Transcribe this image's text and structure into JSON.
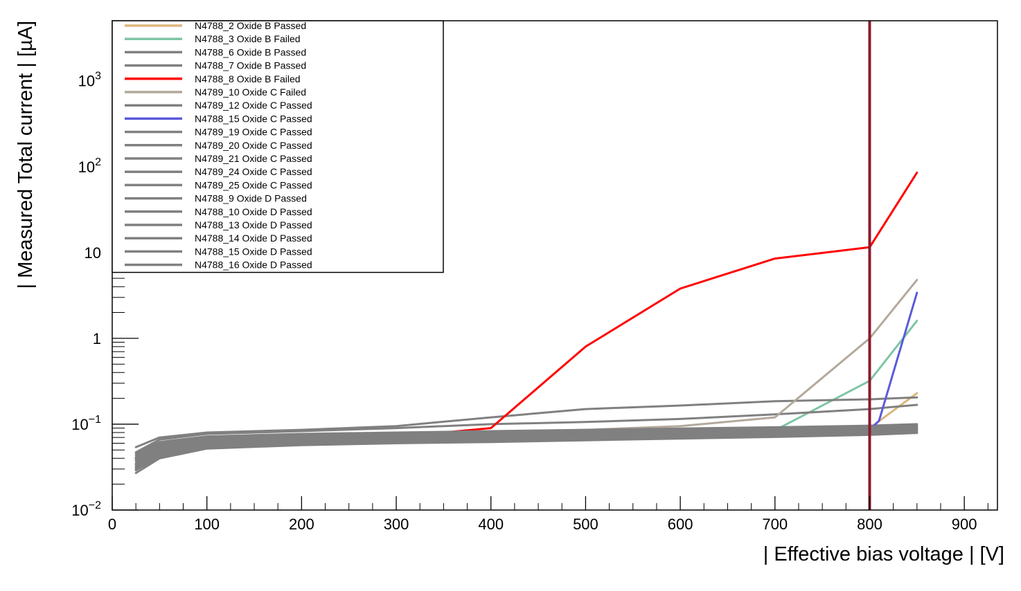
{
  "chart_data": {
    "type": "line",
    "xlabel": "| Effective bias voltage | [V]",
    "ylabel": "| Measured Total current | [µA]",
    "xlim": [
      0,
      935
    ],
    "ylim": [
      0.01,
      5000
    ],
    "y_scale": "log",
    "grid": false,
    "legend_position": "top-left",
    "x_ticks": [
      {
        "value": 0,
        "label": "0"
      },
      {
        "value": 100,
        "label": "100"
      },
      {
        "value": 200,
        "label": "200"
      },
      {
        "value": 300,
        "label": "300"
      },
      {
        "value": 400,
        "label": "400"
      },
      {
        "value": 500,
        "label": "500"
      },
      {
        "value": 600,
        "label": "600"
      },
      {
        "value": 700,
        "label": "700"
      },
      {
        "value": 800,
        "label": "800"
      },
      {
        "value": 900,
        "label": "900"
      }
    ],
    "y_ticks": [
      {
        "value": 0.01,
        "base": "10",
        "exp": "−2"
      },
      {
        "value": 0.1,
        "base": "10",
        "exp": "−1"
      },
      {
        "value": 1,
        "base": "1",
        "exp": ""
      },
      {
        "value": 10,
        "base": "10",
        "exp": ""
      },
      {
        "value": 100,
        "base": "10",
        "exp": "2"
      },
      {
        "value": 1000,
        "base": "10",
        "exp": "3"
      }
    ],
    "reference_line": {
      "x": 800,
      "color": "#8b1a2e"
    },
    "series": [
      {
        "name": "N4788_2 Oxide B Passed",
        "color": "#dcb67a",
        "x": [
          25,
          50,
          100,
          200,
          300,
          400,
          500,
          600,
          700,
          800,
          850
        ],
        "y": [
          0.033,
          0.048,
          0.058,
          0.062,
          0.066,
          0.068,
          0.07,
          0.074,
          0.078,
          0.09,
          0.23
        ]
      },
      {
        "name": "N4788_3 Oxide B Failed",
        "color": "#7fc4a4",
        "x": [
          25,
          50,
          100,
          200,
          300,
          400,
          500,
          600,
          700,
          800,
          850
        ],
        "y": [
          0.032,
          0.046,
          0.056,
          0.06,
          0.064,
          0.066,
          0.07,
          0.075,
          0.085,
          0.32,
          1.6
        ]
      },
      {
        "name": "N4788_6 Oxide B Passed",
        "color": "#808080",
        "x": [
          25,
          50,
          100,
          200,
          300,
          400,
          500,
          600,
          700,
          800,
          850
        ],
        "y": [
          0.054,
          0.07,
          0.08,
          0.086,
          0.095,
          0.12,
          0.15,
          0.165,
          0.185,
          0.195,
          0.205
        ]
      },
      {
        "name": "N4788_7 Oxide B Passed",
        "color": "#808080",
        "x": [
          25,
          50,
          100,
          200,
          300,
          400,
          500,
          600,
          700,
          800,
          850
        ],
        "y": [
          0.047,
          0.066,
          0.077,
          0.083,
          0.09,
          0.1,
          0.106,
          0.115,
          0.13,
          0.15,
          0.168
        ]
      },
      {
        "name": "N4788_8 Oxide B Failed",
        "color": "#ff0000",
        "x": [
          25,
          50,
          100,
          200,
          300,
          350,
          400,
          500,
          600,
          700,
          800,
          850
        ],
        "y": [
          0.04,
          0.055,
          0.063,
          0.066,
          0.071,
          0.08,
          0.09,
          0.8,
          3.8,
          8.5,
          11.5,
          85
        ]
      },
      {
        "name": "N4789_10 Oxide C Failed",
        "color": "#b3a99b",
        "x": [
          25,
          50,
          100,
          200,
          300,
          400,
          500,
          600,
          700,
          800,
          850
        ],
        "y": [
          0.038,
          0.054,
          0.064,
          0.069,
          0.075,
          0.08,
          0.086,
          0.095,
          0.12,
          1.0,
          4.8
        ]
      },
      {
        "name": "N4789_12 Oxide C Passed",
        "color": "#808080",
        "x": [
          25,
          50,
          100,
          200,
          300,
          400,
          500,
          600,
          700,
          800,
          850
        ],
        "y": [
          0.045,
          0.062,
          0.072,
          0.077,
          0.08,
          0.083,
          0.086,
          0.089,
          0.092,
          0.096,
          0.1
        ]
      },
      {
        "name": "N4788_15 Oxide C Passed",
        "color": "#5a5adc",
        "x": [
          25,
          50,
          80,
          100,
          200,
          300,
          400,
          500,
          600,
          700,
          800,
          810,
          850
        ],
        "y": [
          0.034,
          0.05,
          0.06,
          0.064,
          0.066,
          0.068,
          0.07,
          0.072,
          0.075,
          0.078,
          0.085,
          0.11,
          3.4
        ]
      },
      {
        "name": "N4789_19 Oxide C Passed",
        "color": "#808080",
        "x": [
          25,
          50,
          100,
          200,
          300,
          400,
          500,
          600,
          700,
          800,
          850
        ],
        "y": [
          0.043,
          0.06,
          0.07,
          0.075,
          0.078,
          0.08,
          0.083,
          0.086,
          0.089,
          0.093,
          0.097
        ]
      },
      {
        "name": "N4789_20 Oxide C Passed",
        "color": "#808080",
        "x": [
          25,
          50,
          100,
          200,
          300,
          400,
          500,
          600,
          700,
          800,
          850
        ],
        "y": [
          0.041,
          0.058,
          0.068,
          0.073,
          0.076,
          0.078,
          0.081,
          0.084,
          0.087,
          0.091,
          0.095
        ]
      },
      {
        "name": "N4789_21 Oxide C Passed",
        "color": "#808080",
        "x": [
          25,
          50,
          100,
          200,
          300,
          400,
          500,
          600,
          700,
          800,
          850
        ],
        "y": [
          0.039,
          0.056,
          0.066,
          0.071,
          0.074,
          0.076,
          0.079,
          0.082,
          0.085,
          0.089,
          0.093
        ]
      },
      {
        "name": "N4789_24 Oxide C Passed",
        "color": "#808080",
        "x": [
          25,
          50,
          100,
          200,
          300,
          400,
          500,
          600,
          700,
          800,
          850
        ],
        "y": [
          0.037,
          0.054,
          0.064,
          0.069,
          0.072,
          0.074,
          0.077,
          0.08,
          0.083,
          0.087,
          0.091
        ]
      },
      {
        "name": "N4789_25 Oxide C Passed",
        "color": "#808080",
        "x": [
          25,
          50,
          100,
          200,
          300,
          400,
          500,
          600,
          700,
          800,
          850
        ],
        "y": [
          0.035,
          0.052,
          0.062,
          0.067,
          0.07,
          0.072,
          0.075,
          0.078,
          0.081,
          0.085,
          0.089
        ]
      },
      {
        "name": "N4788_9 Oxide D Passed",
        "color": "#808080",
        "x": [
          25,
          50,
          100,
          200,
          300,
          400,
          500,
          600,
          700,
          800,
          850
        ],
        "y": [
          0.034,
          0.05,
          0.06,
          0.065,
          0.068,
          0.07,
          0.073,
          0.076,
          0.079,
          0.083,
          0.087
        ]
      },
      {
        "name": "N4788_10 Oxide D Passed",
        "color": "#808080",
        "x": [
          25,
          50,
          100,
          200,
          300,
          400,
          500,
          600,
          700,
          800,
          850
        ],
        "y": [
          0.032,
          0.048,
          0.058,
          0.063,
          0.066,
          0.068,
          0.071,
          0.074,
          0.077,
          0.081,
          0.085
        ]
      },
      {
        "name": "N4788_13 Oxide D Passed",
        "color": "#808080",
        "x": [
          25,
          50,
          100,
          200,
          300,
          400,
          500,
          600,
          700,
          800,
          850
        ],
        "y": [
          0.031,
          0.046,
          0.056,
          0.061,
          0.064,
          0.066,
          0.069,
          0.072,
          0.075,
          0.079,
          0.083
        ]
      },
      {
        "name": "N4788_14 Oxide D Passed",
        "color": "#808080",
        "x": [
          25,
          50,
          100,
          200,
          300,
          400,
          500,
          600,
          700,
          800,
          850
        ],
        "y": [
          0.03,
          0.044,
          0.054,
          0.059,
          0.062,
          0.064,
          0.067,
          0.07,
          0.073,
          0.077,
          0.081
        ]
      },
      {
        "name": "N4788_15 Oxide D Passed",
        "color": "#808080",
        "x": [
          25,
          50,
          100,
          200,
          300,
          400,
          500,
          600,
          700,
          800,
          850
        ],
        "y": [
          0.029,
          0.042,
          0.053,
          0.058,
          0.061,
          0.063,
          0.066,
          0.069,
          0.072,
          0.076,
          0.08
        ]
      },
      {
        "name": "N4788_16 Oxide D Passed",
        "color": "#808080",
        "x": [
          25,
          50,
          100,
          200,
          300,
          400,
          500,
          600,
          700,
          800,
          850
        ],
        "y": [
          0.027,
          0.04,
          0.052,
          0.057,
          0.06,
          0.062,
          0.065,
          0.068,
          0.071,
          0.075,
          0.079
        ]
      }
    ]
  }
}
